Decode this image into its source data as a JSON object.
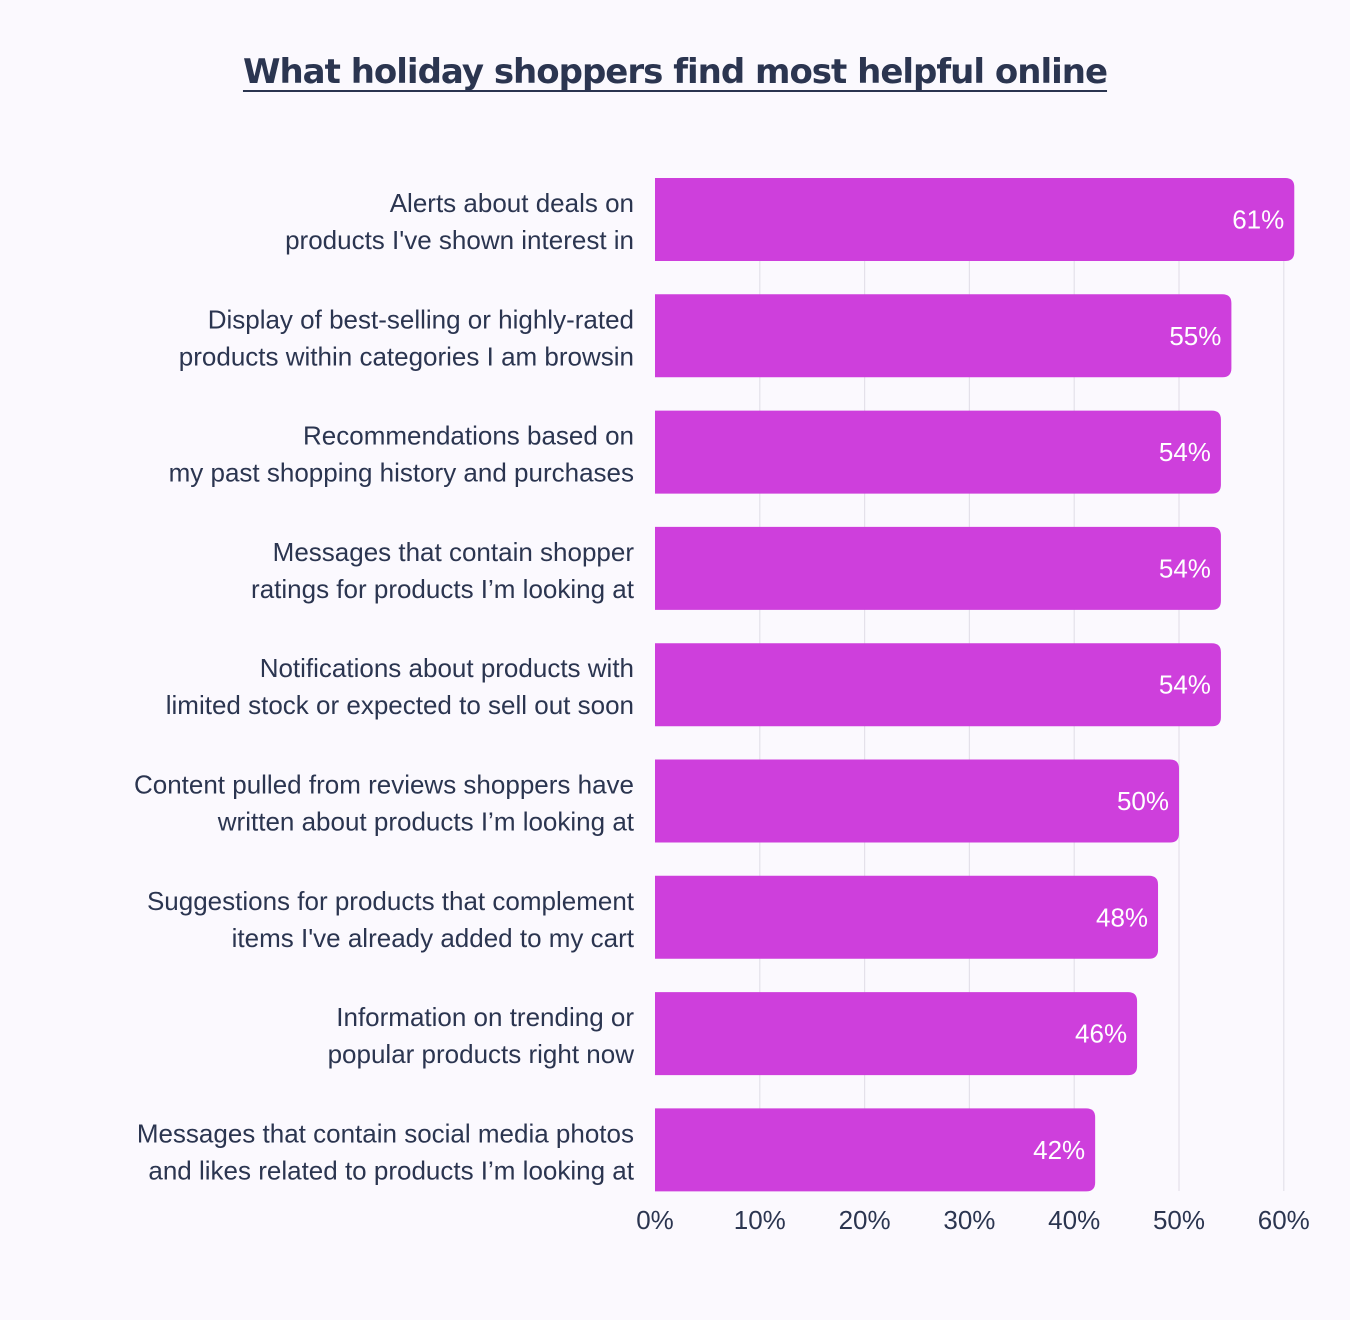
{
  "chart_data": {
    "type": "bar",
    "orientation": "horizontal",
    "title": "What holiday shoppers find most helpful online",
    "categories": [
      [
        "Alerts about deals on",
        "products I've shown interest in"
      ],
      [
        "Display of best-selling or highly-rated",
        "products within categories I am browsin"
      ],
      [
        "Recommendations based on",
        "my past shopping history and purchases"
      ],
      [
        "Messages that contain shopper",
        "ratings for products I’m looking at"
      ],
      [
        "Notifications about products with",
        "limited stock or expected to sell out soon"
      ],
      [
        "Content pulled from reviews shoppers have",
        "written about products I’m looking at"
      ],
      [
        "Suggestions for products that complement",
        "items I've already added to my cart"
      ],
      [
        "Information on trending or",
        "popular products right now"
      ],
      [
        "Messages that contain social media photos",
        "and likes related to products I’m looking at"
      ]
    ],
    "values": [
      61,
      55,
      54,
      54,
      54,
      50,
      48,
      46,
      42
    ],
    "value_labels": [
      "61%",
      "55%",
      "54%",
      "54%",
      "54%",
      "50%",
      "48%",
      "46%",
      "42%"
    ],
    "xlim": [
      0,
      60
    ],
    "ticks": [
      0,
      10,
      20,
      30,
      40,
      50,
      60
    ],
    "tick_labels": [
      "0%",
      "10%",
      "20%",
      "30%",
      "40%",
      "50%",
      "60%"
    ],
    "grid": true,
    "legend": "none",
    "colors": {
      "bar": "#ce3fdc",
      "grid": "#e4e1ea",
      "text": "#2b3550",
      "value_text": "#ffffff",
      "background": "#fbf9fe"
    }
  }
}
